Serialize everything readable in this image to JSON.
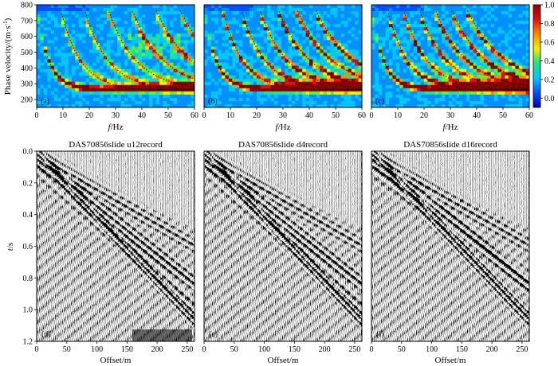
{
  "colorbar": {
    "ticks": [
      "0.0",
      "0.2",
      "0.4",
      "0.6",
      "0.8",
      "1.0"
    ],
    "colors": [
      "#0000b4",
      "#0050ff",
      "#00c8ff",
      "#20e080",
      "#f0f000",
      "#ff8c00",
      "#e01010",
      "#8c0000"
    ]
  },
  "top_row": {
    "ylabel_main": "Phase velocity/(m·s",
    "ylabel_sup": "-1",
    "ylabel_close": ")",
    "xlabel_italic": "f",
    "xlabel_unit": "/Hz",
    "x_ticks": [
      "0",
      "10",
      "20",
      "30",
      "40",
      "50",
      "60"
    ],
    "y_ticks": [
      "200",
      "300",
      "400",
      "500",
      "600",
      "700",
      "800"
    ],
    "panels": [
      {
        "label": "(a)"
      },
      {
        "label": "(b)"
      },
      {
        "label": "(c)"
      }
    ]
  },
  "bottom_row": {
    "ylabel_italic": "t",
    "ylabel_unit": "/s",
    "xlabel": "Offset/m",
    "x_ticks": [
      "0",
      "50",
      "100",
      "150",
      "200",
      "250"
    ],
    "y_ticks": [
      "0.0",
      "0.2",
      "0.4",
      "0.6",
      "0.8",
      "1.0",
      "1.2"
    ],
    "panels": [
      {
        "title": "DAS70856slide u12record",
        "label": "(d)"
      },
      {
        "title": "DAS70856slide d4record",
        "label": "(e)"
      },
      {
        "title": "DAS70856slide d16record",
        "label": "(f)"
      }
    ]
  }
}
